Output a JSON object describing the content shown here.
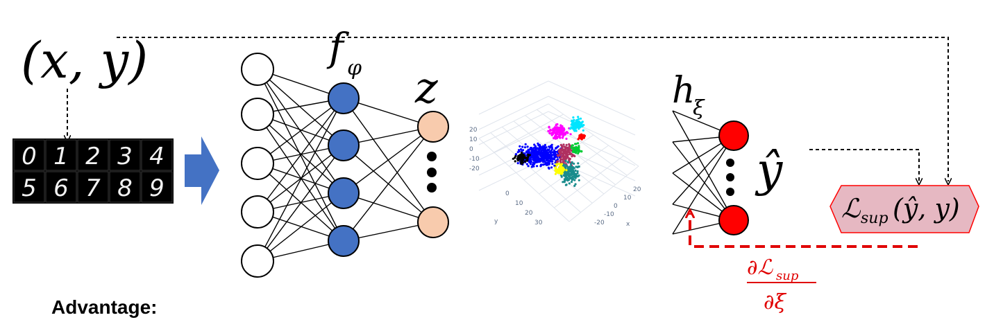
{
  "input_label": "(x, y)",
  "encoder_label": "f",
  "encoder_sub": "φ",
  "latent_label": "z",
  "head_label": "h",
  "head_sub": "ξ",
  "output_label": "ŷ",
  "loss": {
    "main": "ℒ",
    "sub": "sup",
    "args": "(ŷ, y)"
  },
  "gradient": {
    "numerator": "∂ℒ",
    "numerator_sub": "sup",
    "denominator": "∂ξ"
  },
  "advantage_label": "Advantage:",
  "mnist_digits": [
    [
      "0",
      "1",
      "2",
      "3",
      "4"
    ],
    [
      "5",
      "6",
      "7",
      "8",
      "9"
    ]
  ],
  "scatter_ticks": {
    "left": [
      "20",
      "10",
      "0",
      "-10",
      "-20"
    ],
    "bottom_left": [
      "0",
      "10",
      "20",
      "30"
    ],
    "axis_y": "y",
    "axis_x": "x",
    "bottom_right": [
      "20",
      "10",
      "0",
      "-10",
      "-20"
    ]
  },
  "colors": {
    "encoder_node": "#4472c4",
    "latent_node": "#f8cbad",
    "output_node": "#ff0000",
    "loss_box_fill": "#e6b8c2",
    "loss_box_stroke": "#ff0000",
    "gradient_path": "#e00000",
    "arrow_shape": "#4472c4"
  }
}
